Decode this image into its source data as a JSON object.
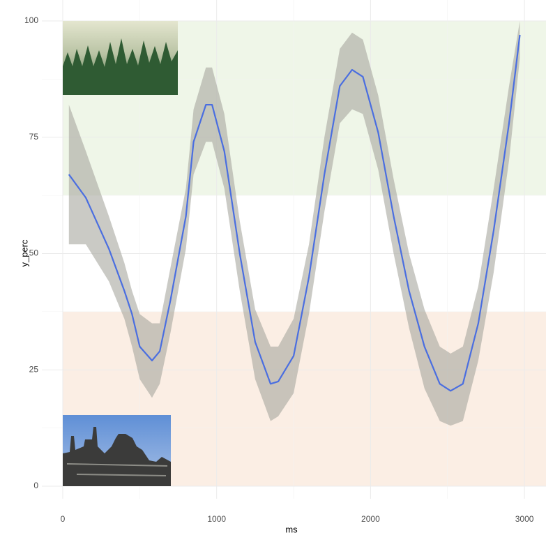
{
  "chart_data": {
    "type": "smooth",
    "x_label": "ms",
    "y_label": "y_perc",
    "xlim": [
      -136,
      3140
    ],
    "ylim": [
      -2.7,
      104.5
    ],
    "xticks": [
      0,
      1000,
      2000,
      3000
    ],
    "yticks": [
      0,
      25,
      50,
      75,
      100
    ],
    "grid": true,
    "bands": [
      {
        "range": [
          0,
          37.5
        ],
        "color": "#fbeee4"
      },
      {
        "range": [
          62.5,
          100
        ],
        "color": "#eff6e8"
      }
    ],
    "series": [
      {
        "color": "#4a6ee0",
        "ribbon_color": "#a6a69e",
        "x": [
          40,
          150,
          300,
          400,
          450,
          500,
          580,
          630,
          700,
          800,
          850,
          930,
          970,
          1050,
          1150,
          1250,
          1350,
          1400,
          1500,
          1600,
          1700,
          1800,
          1880,
          1950,
          2050,
          2150,
          2250,
          2350,
          2450,
          2520,
          2600,
          2700,
          2800,
          2900,
          2970
        ],
        "values": [
          67,
          62,
          51,
          42,
          37,
          30,
          27,
          29,
          40,
          58,
          74,
          82,
          82,
          72,
          50,
          31,
          22,
          22.5,
          28,
          45,
          67,
          86,
          89.5,
          88,
          76,
          58,
          42,
          30,
          22,
          20.5,
          22,
          35,
          55,
          78,
          97
        ],
        "lower": [
          52,
          52,
          44,
          36,
          30,
          23,
          19,
          22,
          33,
          51,
          67,
          74,
          74,
          64,
          42,
          23,
          14,
          15,
          20,
          37,
          59,
          78,
          81,
          80,
          68,
          50,
          34,
          21,
          14,
          13,
          14,
          27,
          46,
          70,
          92
        ],
        "upper": [
          82,
          72,
          58,
          48,
          42,
          37,
          35,
          35,
          47,
          64,
          81,
          90,
          90,
          80,
          57,
          38,
          30,
          30,
          36,
          52,
          75,
          94,
          97.5,
          96,
          84,
          66,
          50,
          38,
          30,
          28.5,
          30,
          43,
          64,
          86,
          100
        ]
      }
    ]
  }
}
